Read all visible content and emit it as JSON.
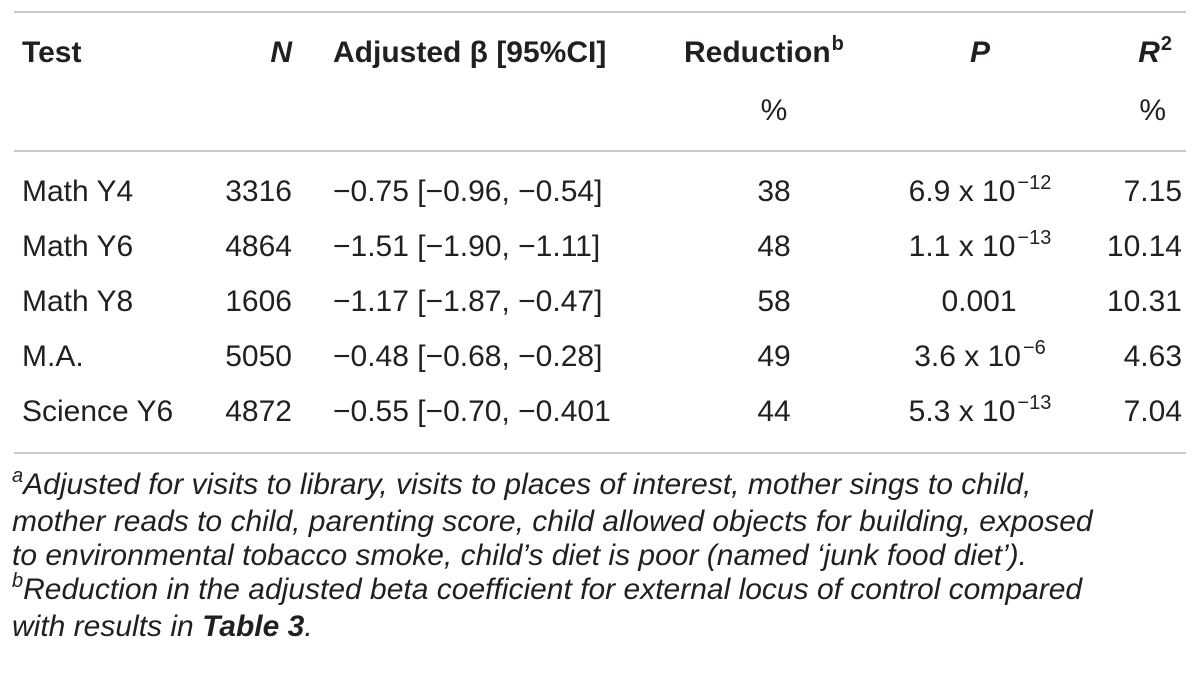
{
  "headers": {
    "test": "Test",
    "n": "N",
    "beta": "Adjusted β [95%CI]",
    "reduction": "Reduction",
    "reduction_sup": "b",
    "reduction_unit": "%",
    "p": "P",
    "r2": "R",
    "r2_sup": "2",
    "r2_unit": "%"
  },
  "rows": [
    {
      "test": "Math Y4",
      "n": "3316",
      "beta": "−0.75 [−0.96, −0.54]",
      "reduction": "38",
      "p_base": "6.9 x 10",
      "p_exp": "−12",
      "r2": "7.15"
    },
    {
      "test": "Math Y6",
      "n": "4864",
      "beta": "−1.51 [−1.90, −1.11]",
      "reduction": "48",
      "p_base": "1.1 x 10",
      "p_exp": "−13",
      "r2": "10.14"
    },
    {
      "test": "Math Y8",
      "n": "1606",
      "beta": "−1.17 [−1.87, −0.47]",
      "reduction": "58",
      "p_base": "0.001",
      "p_exp": "",
      "r2": "10.31"
    },
    {
      "test": "M.A.",
      "n": "5050",
      "beta": "−0.48 [−0.68, −0.28]",
      "reduction": "49",
      "p_base": "3.6 x 10",
      "p_exp": "−6",
      "r2": "4.63"
    },
    {
      "test": "Science Y6",
      "n": "4872",
      "beta": "−0.55 [−0.70, −0.401",
      "reduction": "44",
      "p_base": "5.3 x 10",
      "p_exp": "−13",
      "r2": "7.04"
    }
  ],
  "footnotes": {
    "a_mark": "a",
    "a_line1": "Adjusted for visits to library, visits to places of interest, mother sings to child,",
    "a_line2": "mother reads to child, parenting score, child allowed objects for building, exposed",
    "a_line3": "to environmental tobacco smoke, child’s diet is poor (named ‘junk food diet’).",
    "b_mark": "b",
    "b_line1": "Reduction in the adjusted beta coefficient for external locus of control compared",
    "b_line2_prefix": "with results in ",
    "b_line2_ref": "Table 3",
    "b_line2_suffix": "."
  }
}
